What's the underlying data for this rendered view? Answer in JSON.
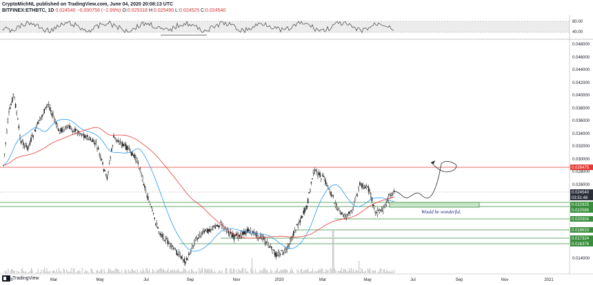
{
  "header": {
    "line1": "CryptoMichNL published on TradingView.com, June 04, 2020 20:08:13 UTC",
    "symbol": "BITFINEX:ETHBTC, 1D",
    "last": "0.024540",
    "change": "−0.000756 (−2.99%)",
    "o_label": "O:",
    "o": "0.025318",
    "h_label": "H:",
    "h": "0.025490",
    "l_label": "L:",
    "l": "0.024525",
    "c_label": "C:",
    "c": "0.024540"
  },
  "rsi": {
    "tick_upper": "80.00",
    "tick_lower": "40.00"
  },
  "price_axis": {
    "ticks": [
      "0.048000",
      "0.046000",
      "0.044000",
      "0.042000",
      "0.040000",
      "0.038000",
      "0.036000",
      "0.034000",
      "0.032000",
      "0.030000",
      "0.028000",
      "0.026000",
      "0.014000"
    ],
    "labels": [
      {
        "text": "0.028475",
        "color": "#e53935"
      },
      {
        "text": "0.024540",
        "color": "#ffffff",
        "dark": true
      },
      {
        "text": "03:51:48",
        "color": "#ffffff",
        "dark": true
      },
      {
        "text": "0.022925",
        "color": "#388e3c"
      },
      {
        "text": "0.022586",
        "color": "#388e3c"
      },
      {
        "text": "0.020304",
        "color": "#388e3c"
      },
      {
        "text": "0.018633",
        "color": "#388e3c"
      },
      {
        "text": "0.017324",
        "color": "#388e3c"
      },
      {
        "text": "0.016376",
        "color": "#388e3c"
      }
    ]
  },
  "time_axis": [
    "2019",
    "Mar",
    "May",
    "Jul",
    "Sep",
    "Nov",
    "2020",
    "Mar",
    "May",
    "Jul",
    "Sep",
    "Nov",
    "2021"
  ],
  "annotation": "Would be wonderful.",
  "footer": {
    "brand": "TradingView"
  },
  "colors": {
    "support_line": "#388e3c",
    "resistance_line": "#e53935",
    "ma_blue": "#2196f3",
    "ma_red": "#e53935",
    "zone_fill": "#c8e6c9",
    "annotation_text": "#1a237e"
  }
}
